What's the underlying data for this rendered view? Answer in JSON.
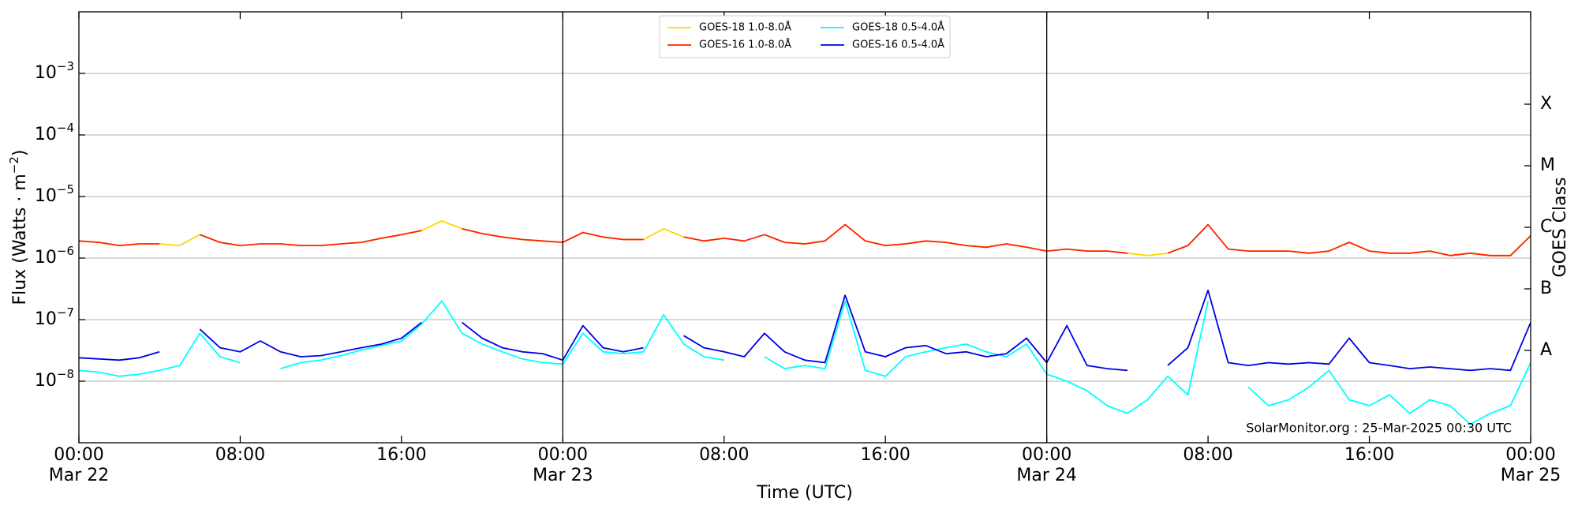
{
  "chart_data": {
    "type": "line",
    "xlabel": "Time (UTC)",
    "ylabel": [
      "Flux (Watts · m",
      "−2",
      ")"
    ],
    "y2label": "GOES Class",
    "annotation": "SolarMonitor.org : 25-Mar-2025 00:30 UTC",
    "log_y": true,
    "grid": true,
    "legend": "upper center",
    "xlim": [
      0,
      72
    ],
    "xticks": [
      {
        "value": 0,
        "label": "00:00",
        "date": "Mar 22"
      },
      {
        "value": 8,
        "label": "08:00"
      },
      {
        "value": 16,
        "label": "16:00"
      },
      {
        "value": 24,
        "label": "00:00",
        "date": "Mar 23"
      },
      {
        "value": 32,
        "label": "08:00"
      },
      {
        "value": 40,
        "label": "16:00"
      },
      {
        "value": 48,
        "label": "00:00",
        "date": "Mar 24"
      },
      {
        "value": 56,
        "label": "08:00"
      },
      {
        "value": 64,
        "label": "16:00"
      },
      {
        "value": 72,
        "label": "00:00",
        "date": "Mar 25"
      }
    ],
    "vlines": [
      24,
      48
    ],
    "ylim": [
      1e-09,
      0.01
    ],
    "yticks": [
      {
        "value": 1e-08,
        "label": "10",
        "exponent": "−8"
      },
      {
        "value": 1e-07,
        "label": "10",
        "exponent": "−7"
      },
      {
        "value": 1e-06,
        "label": "10",
        "exponent": "−6"
      },
      {
        "value": 1e-05,
        "label": "10",
        "exponent": "−5"
      },
      {
        "value": 0.0001,
        "label": "10",
        "exponent": "−4"
      },
      {
        "value": 0.001,
        "label": "10",
        "exponent": "−3"
      }
    ],
    "y2lim": [
      1e-09,
      0.01
    ],
    "y2ticks": [
      {
        "value": 3.16e-08,
        "label": "A"
      },
      {
        "value": 3.16e-07,
        "label": "B"
      },
      {
        "value": 3.16e-06,
        "label": "C"
      },
      {
        "value": 3.16e-05,
        "label": "M"
      },
      {
        "value": 0.000316,
        "label": "X"
      }
    ],
    "x": [
      0,
      1,
      2,
      3,
      4,
      5,
      6,
      7,
      8,
      9,
      10,
      11,
      12,
      13,
      14,
      15,
      16,
      17,
      18,
      19,
      20,
      21,
      22,
      23,
      24,
      25,
      26,
      27,
      28,
      29,
      30,
      31,
      32,
      33,
      34,
      35,
      36,
      37,
      38,
      39,
      40,
      41,
      42,
      43,
      44,
      45,
      46,
      47,
      48,
      49,
      50,
      51,
      52,
      53,
      54,
      55,
      56,
      57,
      58,
      59,
      60,
      61,
      62,
      63,
      64,
      65,
      66,
      67,
      68,
      69,
      70,
      71,
      72
    ],
    "series": [
      {
        "name": "GOES-18 1.0-8.0Å",
        "color": "#ffd700",
        "values": [
          1.9e-06,
          1.8e-06,
          1.6e-06,
          1.7e-06,
          1.7e-06,
          1.6e-06,
          2.4e-06,
          1.8e-06,
          1.6e-06,
          null,
          1.7e-06,
          1.6e-06,
          1.6e-06,
          1.7e-06,
          1.8e-06,
          2.1e-06,
          2.4e-06,
          2.8e-06,
          4e-06,
          3e-06,
          2.5e-06,
          2.2e-06,
          2e-06,
          1.9e-06,
          1.8e-06,
          2.6e-06,
          2.2e-06,
          2e-06,
          2e-06,
          3e-06,
          2.2e-06,
          1.9e-06,
          2.1e-06,
          null,
          2.4e-06,
          1.8e-06,
          1.7e-06,
          1.9e-06,
          3.5e-06,
          1.9e-06,
          1.6e-06,
          1.7e-06,
          1.9e-06,
          1.8e-06,
          1.6e-06,
          1.5e-06,
          1.7e-06,
          1.5e-06,
          1.3e-06,
          1.4e-06,
          1.3e-06,
          1.3e-06,
          1.2e-06,
          1.1e-06,
          1.2e-06,
          1.6e-06,
          3.5e-06,
          null,
          1.3e-06,
          1.3e-06,
          1.3e-06,
          1.2e-06,
          1.3e-06,
          1.8e-06,
          1.3e-06,
          1.2e-06,
          1.2e-06,
          1.3e-06,
          1.1e-06,
          1.2e-06,
          1.1e-06,
          1.1e-06,
          2.3e-06
        ]
      },
      {
        "name": "GOES-16 1.0-8.0Å",
        "color": "#ff2200",
        "values": [
          1.9e-06,
          1.8e-06,
          1.6e-06,
          1.7e-06,
          1.7e-06,
          null,
          2.4e-06,
          1.8e-06,
          1.6e-06,
          1.7e-06,
          1.7e-06,
          1.6e-06,
          1.6e-06,
          1.7e-06,
          1.8e-06,
          2.1e-06,
          2.4e-06,
          2.8e-06,
          null,
          3e-06,
          2.5e-06,
          2.2e-06,
          2e-06,
          1.9e-06,
          1.8e-06,
          2.6e-06,
          2.2e-06,
          2e-06,
          2e-06,
          null,
          2.2e-06,
          1.9e-06,
          2.1e-06,
          1.9e-06,
          2.4e-06,
          1.8e-06,
          1.7e-06,
          1.9e-06,
          3.5e-06,
          1.9e-06,
          1.6e-06,
          1.7e-06,
          1.9e-06,
          1.8e-06,
          1.6e-06,
          1.5e-06,
          1.7e-06,
          1.5e-06,
          1.3e-06,
          1.4e-06,
          1.3e-06,
          1.3e-06,
          1.2e-06,
          null,
          1.2e-06,
          1.6e-06,
          3.5e-06,
          1.4e-06,
          1.3e-06,
          1.3e-06,
          1.3e-06,
          1.2e-06,
          1.3e-06,
          1.8e-06,
          1.3e-06,
          1.2e-06,
          1.2e-06,
          1.3e-06,
          1.1e-06,
          1.2e-06,
          1.1e-06,
          1.1e-06,
          2.3e-06
        ]
      },
      {
        "name": "GOES-18 0.5-4.0Å",
        "color": "#00ffff",
        "values": [
          1.5e-08,
          1.4e-08,
          1.2e-08,
          1.3e-08,
          1.5e-08,
          1.8e-08,
          6e-08,
          2.5e-08,
          2e-08,
          null,
          1.6e-08,
          2e-08,
          2.2e-08,
          2.6e-08,
          3.2e-08,
          3.8e-08,
          4.5e-08,
          8.5e-08,
          2e-07,
          6e-08,
          4e-08,
          3e-08,
          2.3e-08,
          2e-08,
          1.9e-08,
          6e-08,
          3e-08,
          2.8e-08,
          3e-08,
          1.2e-07,
          4e-08,
          2.5e-08,
          2.2e-08,
          null,
          2.5e-08,
          1.6e-08,
          1.8e-08,
          1.6e-08,
          2e-07,
          1.5e-08,
          1.2e-08,
          2.5e-08,
          3e-08,
          3.5e-08,
          4e-08,
          3e-08,
          2.5e-08,
          4e-08,
          1.3e-08,
          1e-08,
          7e-09,
          4e-09,
          3e-09,
          5e-09,
          1.2e-08,
          6e-09,
          2e-07,
          null,
          8e-09,
          4e-09,
          5e-09,
          8e-09,
          1.5e-08,
          5e-09,
          4e-09,
          6e-09,
          3e-09,
          5e-09,
          4e-09,
          2e-09,
          3e-09,
          4e-09,
          2e-08
        ]
      },
      {
        "name": "GOES-16 0.5-4.0Å",
        "color": "#0000e6",
        "values": [
          2.4e-08,
          2.3e-08,
          2.2e-08,
          2.4e-08,
          3e-08,
          null,
          7e-08,
          3.5e-08,
          3e-08,
          4.5e-08,
          3e-08,
          2.5e-08,
          2.6e-08,
          3e-08,
          3.5e-08,
          4e-08,
          5e-08,
          9e-08,
          null,
          9e-08,
          5e-08,
          3.5e-08,
          3e-08,
          2.8e-08,
          2.2e-08,
          8e-08,
          3.5e-08,
          3e-08,
          3.5e-08,
          null,
          5.5e-08,
          3.5e-08,
          3e-08,
          2.5e-08,
          6e-08,
          3e-08,
          2.2e-08,
          2e-08,
          2.5e-07,
          3e-08,
          2.5e-08,
          3.5e-08,
          3.8e-08,
          2.8e-08,
          3e-08,
          2.5e-08,
          2.8e-08,
          5e-08,
          2e-08,
          8e-08,
          1.8e-08,
          1.6e-08,
          1.5e-08,
          null,
          1.8e-08,
          3.5e-08,
          3e-07,
          2e-08,
          1.8e-08,
          2e-08,
          1.9e-08,
          2e-08,
          1.9e-08,
          5e-08,
          2e-08,
          1.8e-08,
          1.6e-08,
          1.7e-08,
          1.6e-08,
          1.5e-08,
          1.6e-08,
          1.5e-08,
          9e-08
        ]
      }
    ]
  }
}
